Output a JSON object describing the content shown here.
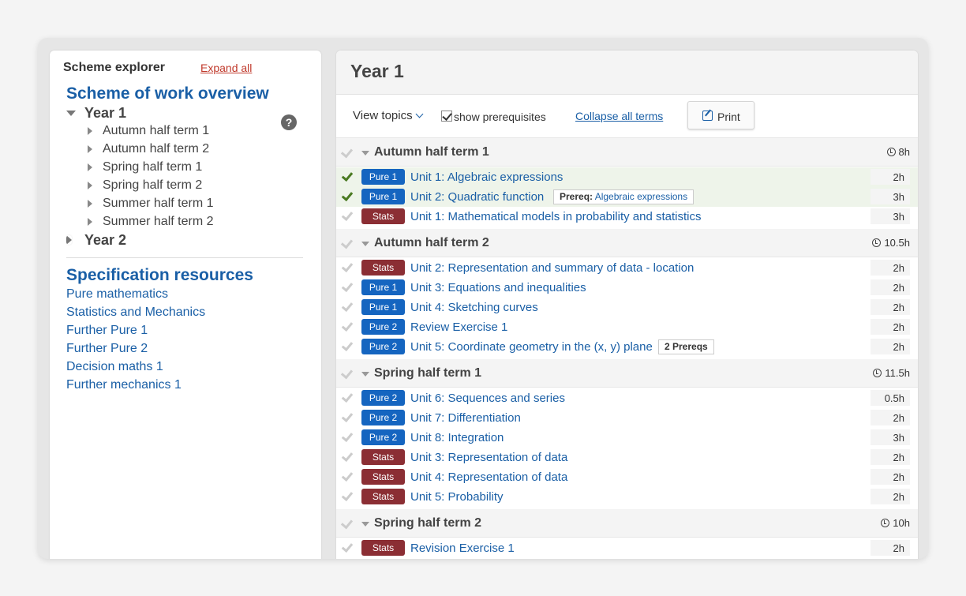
{
  "explorer": {
    "title": "Scheme explorer",
    "expand_all": "Expand all",
    "overview": "Scheme of work overview",
    "year1": "Year 1",
    "terms": [
      "Autumn half term 1",
      "Autumn half term 2",
      "Spring half term 1",
      "Spring half term 2",
      "Summer half term 1",
      "Summer half term 2"
    ],
    "year2": "Year 2",
    "help": "?",
    "spec_title": "Specification resources",
    "spec_links": [
      "Pure mathematics",
      "Statistics and Mechanics",
      "Further Pure 1",
      "Further Pure 2",
      "Decision maths 1",
      "Further mechanics 1"
    ]
  },
  "main": {
    "title": "Year 1",
    "view_topics": "View topics",
    "show_prereq": "show prerequisites",
    "collapse_all": "Collapse all terms",
    "print": "Print"
  },
  "sections": [
    {
      "title": "Autumn half term 1",
      "hours": "8h",
      "rows": [
        {
          "badge": "Pure 1",
          "type": "pure",
          "unit": "Unit 1: Algebraic expressions",
          "hours": "2h",
          "done": true
        },
        {
          "badge": "Pure 1",
          "type": "pure",
          "unit": "Unit 2: Quadratic function",
          "hours": "3h",
          "done": true,
          "prereq_label": "Prereq:",
          "prereq_text": "Algebraic expressions"
        },
        {
          "badge": "Stats",
          "type": "stats",
          "unit": "Unit 1: Mathematical models in probability and statistics",
          "hours": "3h",
          "done": false
        }
      ]
    },
    {
      "title": "Autumn half term 2",
      "hours": "10.5h",
      "rows": [
        {
          "badge": "Stats",
          "type": "stats",
          "unit": "Unit 2: Representation and summary of data - location",
          "hours": "2h",
          "done": false
        },
        {
          "badge": "Pure 1",
          "type": "pure",
          "unit": "Unit 3: Equations and inequalities",
          "hours": "2h",
          "done": false
        },
        {
          "badge": "Pure 1",
          "type": "pure",
          "unit": "Unit 4: Sketching curves",
          "hours": "2h",
          "done": false
        },
        {
          "badge": "Pure 2",
          "type": "pure",
          "unit": "Review Exercise 1",
          "hours": "2h",
          "done": false
        },
        {
          "badge": "Pure 2",
          "type": "pure",
          "unit": "Unit 5: Coordinate geometry in the (x, y) plane",
          "hours": "2h",
          "done": false,
          "prereq_label": "2 Prereqs",
          "prereq_text": ""
        }
      ]
    },
    {
      "title": "Spring half term 1",
      "hours": "11.5h",
      "rows": [
        {
          "badge": "Pure 2",
          "type": "pure",
          "unit": "Unit 6: Sequences and series",
          "hours": "0.5h",
          "done": false
        },
        {
          "badge": "Pure 2",
          "type": "pure",
          "unit": "Unit 7: Differentiation",
          "hours": "2h",
          "done": false
        },
        {
          "badge": "Pure 2",
          "type": "pure",
          "unit": "Unit 8: Integration",
          "hours": "3h",
          "done": false
        },
        {
          "badge": "Stats",
          "type": "stats",
          "unit": "Unit 3: Representation of data",
          "hours": "2h",
          "done": false
        },
        {
          "badge": "Stats",
          "type": "stats",
          "unit": "Unit 4: Representation of data",
          "hours": "2h",
          "done": false
        },
        {
          "badge": "Stats",
          "type": "stats",
          "unit": "Unit 5: Probability",
          "hours": "2h",
          "done": false
        }
      ]
    },
    {
      "title": "Spring half term 2",
      "hours": "10h",
      "rows": [
        {
          "badge": "Stats",
          "type": "stats",
          "unit": "Revision Exercise 1",
          "hours": "2h",
          "done": false
        }
      ]
    }
  ]
}
